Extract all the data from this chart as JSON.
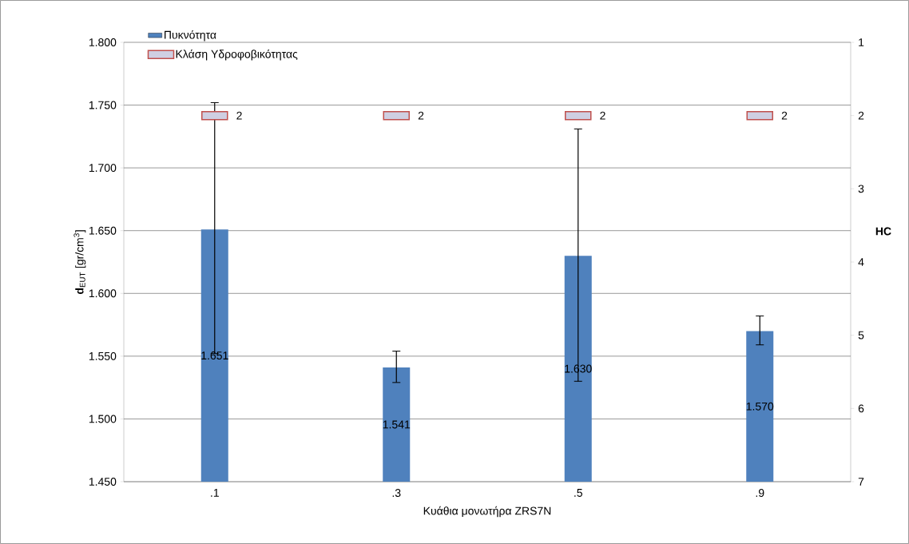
{
  "chart_data": {
    "type": "bar",
    "categories": [
      ".1",
      ".3",
      ".5",
      ".9"
    ],
    "xlabel": "Κυάθια μονωτήρα ZRS7N",
    "ylabel": "**d**$_{EUT}$ [gr/cm$^{3}$]",
    "y2label": "**HC**",
    "series": [
      {
        "name": "Πυκνότητα",
        "color": "#4f81bd",
        "values": [
          1.651,
          1.541,
          1.63,
          1.57
        ],
        "errors": [
          [
            1.552,
            1.752
          ],
          [
            1.529,
            1.554
          ],
          [
            1.53,
            1.731
          ],
          [
            1.559,
            1.582
          ]
        ],
        "value_labels": [
          "1.651",
          "1.541",
          "1.630",
          "1.570"
        ]
      },
      {
        "name": "Κλάση Υδροφοβικότητας",
        "type": "scatter",
        "axis": "y2",
        "marker": "square",
        "color": "#c0504d",
        "values": [
          2,
          2,
          2,
          2
        ],
        "value_labels": [
          "2",
          "2",
          "2",
          "2"
        ]
      }
    ],
    "ylim": [
      1.45,
      1.8
    ],
    "yticks": [
      {
        "value": 1.45,
        "label": "1.450"
      },
      {
        "value": 1.5,
        "label": "1.500"
      },
      {
        "value": 1.55,
        "label": "1.550"
      },
      {
        "value": 1.6,
        "label": "1.600"
      },
      {
        "value": 1.65,
        "label": "1.650"
      },
      {
        "value": 1.7,
        "label": "1.700"
      },
      {
        "value": 1.75,
        "label": "1.750"
      },
      {
        "value": 1.8,
        "label": "1.800"
      }
    ],
    "y2lim": [
      7,
      1
    ],
    "y2ticks": [
      1,
      2,
      3,
      4,
      5,
      6,
      7
    ],
    "grid": "y",
    "legend": "top left"
  }
}
